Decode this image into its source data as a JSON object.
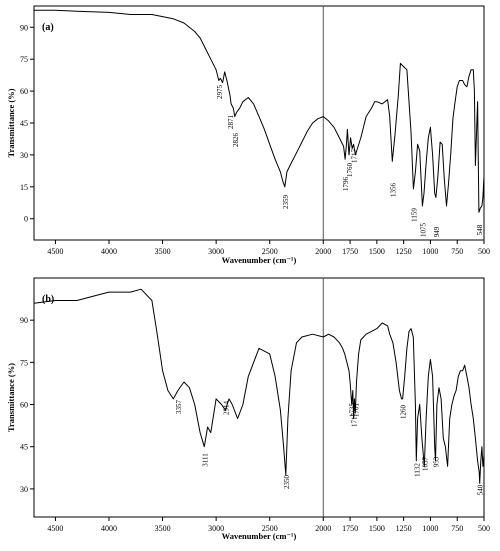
{
  "chart_data": [
    {
      "type": "line",
      "panel_label": "(a)",
      "xlabel": "Wavenumber (cm⁻¹)",
      "ylabel": "Transmittance (%)",
      "xlim": [
        4700,
        500
      ],
      "ylim": [
        -10,
        100
      ],
      "x_ticks": [
        4500,
        4000,
        3500,
        3000,
        2500,
        2000,
        1750,
        1500,
        1250,
        1000,
        750,
        500
      ],
      "y_ticks": [
        0,
        15,
        30,
        45,
        60,
        75,
        90
      ],
      "grid": false,
      "series": [
        {
          "x": [
            4700,
            4500,
            4300,
            4000,
            3800,
            3600,
            3500,
            3400,
            3300,
            3200,
            3150,
            3100,
            3050,
            3000,
            2975,
            2960,
            2940,
            2920,
            2900,
            2871,
            2860,
            2840,
            2826,
            2810,
            2780,
            2750,
            2700,
            2650,
            2600,
            2550,
            2500,
            2450,
            2400,
            2380,
            2359,
            2340,
            2300,
            2250,
            2200,
            2150,
            2100,
            2050,
            2000,
            1950,
            1900,
            1850,
            1810,
            1796,
            1785,
            1775,
            1760,
            1745,
            1730,
            1717,
            1700,
            1650,
            1600,
            1550,
            1520,
            1500,
            1450,
            1400,
            1380,
            1356,
            1330,
            1300,
            1280,
            1260,
            1220,
            1200,
            1180,
            1159,
            1140,
            1120,
            1100,
            1075,
            1060,
            1040,
            1020,
            1000,
            980,
            960,
            949,
            930,
            910,
            890,
            870,
            850,
            830,
            810,
            790,
            770,
            750,
            730,
            700,
            680,
            660,
            640,
            620,
            600,
            590,
            580,
            570,
            560,
            548,
            535,
            520,
            510,
            500
          ],
          "y": [
            98,
            98,
            97.5,
            97,
            96,
            96,
            95,
            94,
            92,
            88,
            85,
            80,
            75,
            70,
            65,
            66,
            64,
            69,
            65,
            58,
            54,
            52,
            48,
            50,
            52,
            55,
            57,
            54,
            48,
            42,
            35,
            28,
            22,
            18,
            15,
            22,
            26,
            31,
            36,
            41,
            45,
            47,
            48,
            46,
            43,
            38,
            34,
            28,
            34,
            42,
            30,
            38,
            33,
            35,
            30,
            38,
            48,
            52,
            55,
            55,
            54,
            56,
            48,
            27,
            40,
            58,
            73,
            72,
            70,
            55,
            40,
            14,
            22,
            35,
            32,
            6,
            12,
            26,
            38,
            43,
            30,
            12,
            10,
            20,
            36,
            35,
            18,
            6,
            17,
            31,
            47,
            55,
            62,
            65,
            65,
            63,
            62,
            67,
            70,
            70,
            60,
            25,
            40,
            55,
            3,
            5,
            6,
            10,
            20
          ]
        }
      ],
      "annotations": [
        "2975",
        "2871",
        "2826",
        "2359",
        "1796",
        "1760",
        "1717",
        "1356",
        "1159",
        "1075",
        "949",
        "548"
      ]
    },
    {
      "type": "line",
      "panel_label": "(b)",
      "xlabel": "Wavenumber (cm⁻¹)",
      "ylabel": "Transmittance (%)",
      "xlim": [
        4700,
        500
      ],
      "ylim": [
        20,
        105
      ],
      "x_ticks": [
        4500,
        4000,
        3500,
        3000,
        2500,
        2000,
        1750,
        1500,
        1250,
        1000,
        750,
        500
      ],
      "y_ticks": [
        30,
        45,
        60,
        75,
        90
      ],
      "grid": false,
      "series": [
        {
          "x": [
            4700,
            4500,
            4300,
            4100,
            4000,
            3900,
            3800,
            3700,
            3600,
            3550,
            3500,
            3450,
            3400,
            3357,
            3300,
            3250,
            3200,
            3150,
            3111,
            3080,
            3050,
            3000,
            2950,
            2914,
            2880,
            2850,
            2800,
            2750,
            2700,
            2600,
            2500,
            2450,
            2400,
            2370,
            2350,
            2330,
            2300,
            2250,
            2200,
            2100,
            2000,
            1950,
            1900,
            1850,
            1820,
            1800,
            1780,
            1760,
            1750,
            1735,
            1725,
            1717,
            1710,
            1701,
            1690,
            1670,
            1650,
            1600,
            1550,
            1500,
            1450,
            1400,
            1380,
            1350,
            1320,
            1290,
            1270,
            1260,
            1240,
            1220,
            1200,
            1180,
            1160,
            1140,
            1132,
            1120,
            1100,
            1080,
            1057,
            1040,
            1020,
            1000,
            980,
            960,
            953,
            940,
            920,
            900,
            880,
            860,
            840,
            820,
            800,
            780,
            760,
            740,
            720,
            700,
            680,
            660,
            640,
            620,
            600,
            580,
            560,
            545,
            540,
            530,
            520,
            510,
            500
          ],
          "y": [
            96,
            97,
            97,
            99,
            100,
            100,
            100,
            101,
            97,
            85,
            72,
            65,
            62,
            65,
            68,
            66,
            60,
            50,
            45,
            52,
            50,
            62,
            60,
            58,
            62,
            60,
            55,
            60,
            70,
            80,
            78,
            70,
            58,
            45,
            35,
            55,
            72,
            82,
            84,
            85,
            84,
            85,
            84,
            82,
            80,
            78,
            75,
            72,
            68,
            60,
            65,
            55,
            62,
            57,
            68,
            78,
            83,
            85,
            86,
            87,
            89,
            88,
            85,
            82,
            75,
            65,
            62,
            62,
            70,
            80,
            86,
            87,
            84,
            60,
            40,
            55,
            60,
            48,
            38,
            55,
            70,
            76,
            70,
            45,
            40,
            60,
            66,
            62,
            48,
            45,
            38,
            55,
            60,
            63,
            65,
            70,
            72,
            72,
            74,
            70,
            66,
            60,
            55,
            48,
            40,
            36,
            32,
            40,
            45,
            38,
            42
          ]
        }
      ],
      "annotations": [
        "3357",
        "3111",
        "2914",
        "2350",
        "1735",
        "1717",
        "1701",
        "1260",
        "1132",
        "1057",
        "953",
        "540"
      ]
    }
  ]
}
